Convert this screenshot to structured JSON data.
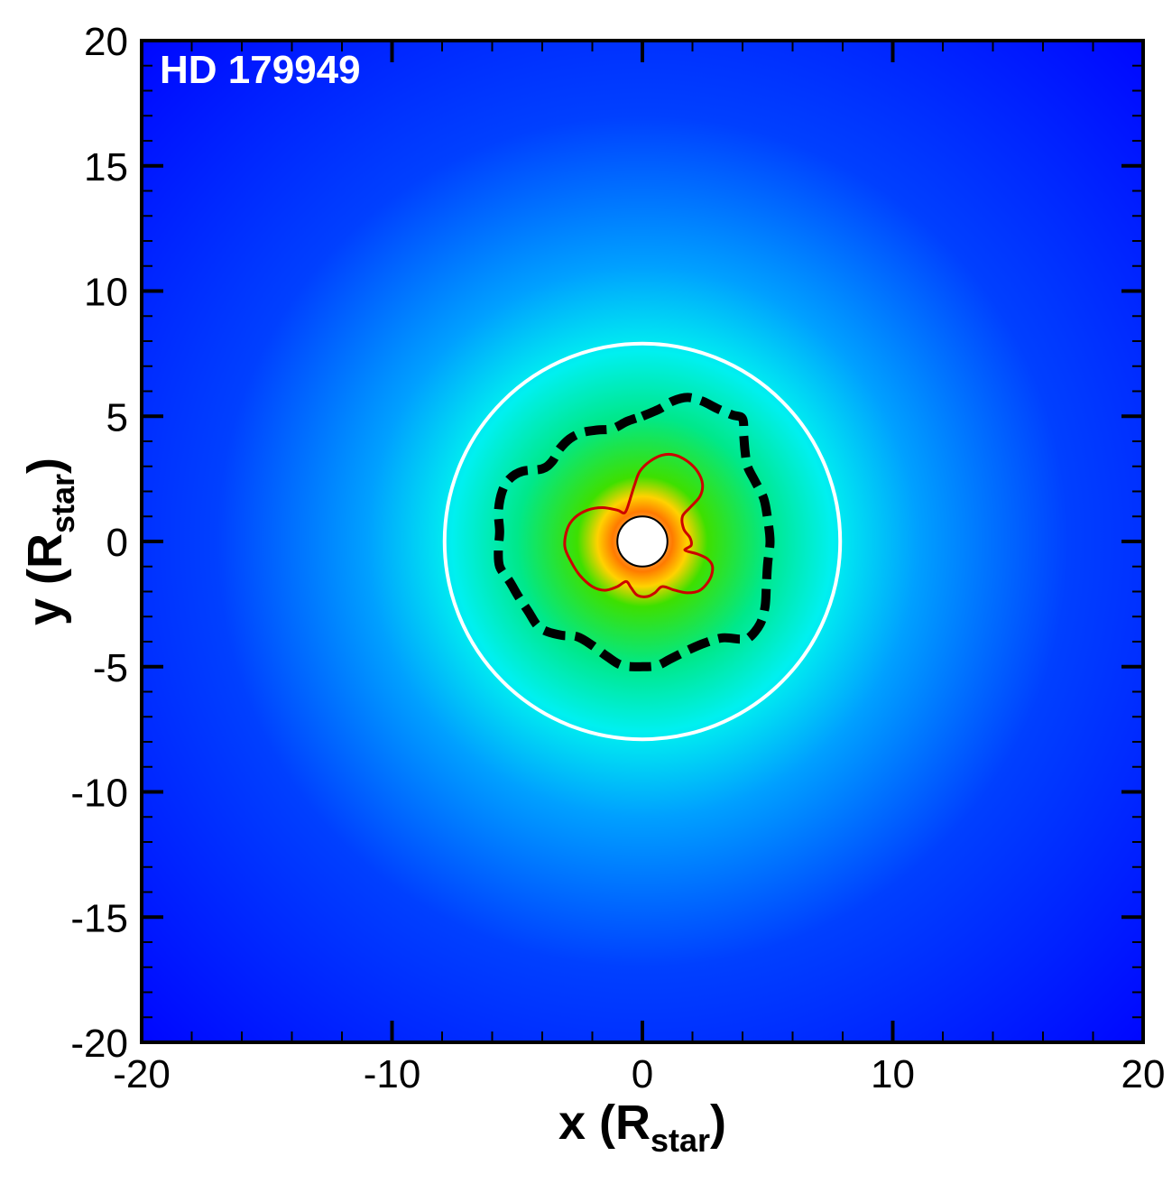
{
  "chart_data": {
    "type": "heatmap",
    "panel_label": "HD 179949",
    "xlabel": "x (R",
    "xlabel_sub": "star",
    "xlabel_close": ")",
    "ylabel": "y (R",
    "ylabel_sub": "star",
    "ylabel_close": ")",
    "xlim": [
      -20,
      20
    ],
    "ylim": [
      -20,
      20
    ],
    "x_ticks": [
      -20,
      -10,
      0,
      10,
      20
    ],
    "y_ticks": [
      -20,
      -15,
      -10,
      -5,
      0,
      5,
      10,
      15,
      20
    ],
    "x_tick_labels": [
      "-20",
      "-10",
      "0",
      "10",
      "20"
    ],
    "y_tick_labels": [
      "-20",
      "-15",
      "-10",
      "-5",
      "0",
      "5",
      "10",
      "15",
      "20"
    ],
    "grid": false,
    "colormap": {
      "stops": [
        {
          "r": 0.0,
          "color": "#fff6c8"
        },
        {
          "r": 1.2,
          "color": "#ff7a00"
        },
        {
          "r": 1.8,
          "color": "#ffd200"
        },
        {
          "r": 2.6,
          "color": "#3ee000"
        },
        {
          "r": 5.0,
          "color": "#00e88a"
        },
        {
          "r": 7.6,
          "color": "#00f0f0"
        },
        {
          "r": 11.0,
          "color": "#00a0ff"
        },
        {
          "r": 17.0,
          "color": "#0040ff"
        },
        {
          "r": 28.0,
          "color": "#0008ff"
        }
      ]
    },
    "star": {
      "center": [
        0,
        0
      ],
      "radius": 1.0,
      "fill": "#ffffff"
    },
    "white_circle": {
      "center": [
        0,
        0
      ],
      "radius": 7.9,
      "color": "#ffffff"
    },
    "dashed_contour": {
      "color": "#000000",
      "points": [
        [
          0,
          5.0
        ],
        [
          0.7,
          5.3
        ],
        [
          1.2,
          5.6
        ],
        [
          1.8,
          5.75
        ],
        [
          2.4,
          5.6
        ],
        [
          3.0,
          5.3
        ],
        [
          3.6,
          5.05
        ],
        [
          4.0,
          4.9
        ],
        [
          4.05,
          4.2
        ],
        [
          4.1,
          3.6
        ],
        [
          4.2,
          3.0
        ],
        [
          4.5,
          2.4
        ],
        [
          4.85,
          1.7
        ],
        [
          5.0,
          0.9
        ],
        [
          5.1,
          0.0
        ],
        [
          5.0,
          -0.9
        ],
        [
          4.95,
          -1.8
        ],
        [
          4.9,
          -2.6
        ],
        [
          4.7,
          -3.3
        ],
        [
          4.25,
          -3.85
        ],
        [
          3.9,
          -3.9
        ],
        [
          3.2,
          -3.85
        ],
        [
          2.5,
          -4.05
        ],
        [
          1.8,
          -4.35
        ],
        [
          1.1,
          -4.7
        ],
        [
          0.6,
          -4.95
        ],
        [
          0,
          -5.0
        ],
        [
          -0.8,
          -4.95
        ],
        [
          -1.4,
          -4.6
        ],
        [
          -2.0,
          -4.15
        ],
        [
          -2.6,
          -3.8
        ],
        [
          -3.2,
          -3.75
        ],
        [
          -3.8,
          -3.6
        ],
        [
          -4.2,
          -3.35
        ],
        [
          -4.55,
          -2.8
        ],
        [
          -4.95,
          -2.2
        ],
        [
          -5.3,
          -1.6
        ],
        [
          -5.7,
          -1.0
        ],
        [
          -5.75,
          -0.3
        ],
        [
          -5.7,
          0.4
        ],
        [
          -5.75,
          1.2
        ],
        [
          -5.6,
          2.0
        ],
        [
          -5.3,
          2.5
        ],
        [
          -4.8,
          2.8
        ],
        [
          -4.0,
          2.9
        ],
        [
          -3.6,
          3.2
        ],
        [
          -3.3,
          3.7
        ],
        [
          -2.9,
          4.1
        ],
        [
          -2.4,
          4.35
        ],
        [
          -1.8,
          4.45
        ],
        [
          -1.2,
          4.5
        ],
        [
          -0.6,
          4.8
        ],
        [
          0,
          5.0
        ]
      ]
    },
    "red_contour": {
      "color": "#cc0000",
      "points": [
        [
          -0.5,
          1.65
        ],
        [
          -0.3,
          2.3
        ],
        [
          -0.1,
          2.8
        ],
        [
          0.3,
          3.2
        ],
        [
          0.8,
          3.45
        ],
        [
          1.3,
          3.45
        ],
        [
          1.8,
          3.2
        ],
        [
          2.2,
          2.8
        ],
        [
          2.4,
          2.3
        ],
        [
          2.3,
          1.8
        ],
        [
          1.9,
          1.35
        ],
        [
          1.6,
          1.0
        ],
        [
          1.65,
          0.5
        ],
        [
          1.9,
          0.15
        ],
        [
          1.95,
          -0.15
        ],
        [
          1.7,
          -0.35
        ],
        [
          2.2,
          -0.5
        ],
        [
          2.6,
          -0.7
        ],
        [
          2.8,
          -1.0
        ],
        [
          2.7,
          -1.5
        ],
        [
          2.3,
          -1.95
        ],
        [
          1.8,
          -2.05
        ],
        [
          1.3,
          -1.95
        ],
        [
          0.8,
          -1.8
        ],
        [
          0.5,
          -2.05
        ],
        [
          0.2,
          -2.2
        ],
        [
          -0.2,
          -2.15
        ],
        [
          -0.45,
          -1.85
        ],
        [
          -0.65,
          -1.6
        ],
        [
          -1.0,
          -1.8
        ],
        [
          -1.5,
          -1.95
        ],
        [
          -2.0,
          -1.8
        ],
        [
          -2.5,
          -1.35
        ],
        [
          -2.85,
          -0.8
        ],
        [
          -3.1,
          -0.2
        ],
        [
          -3.0,
          0.5
        ],
        [
          -2.7,
          0.95
        ],
        [
          -2.2,
          1.25
        ],
        [
          -1.6,
          1.35
        ],
        [
          -1.0,
          1.25
        ],
        [
          -0.7,
          1.15
        ],
        [
          -0.5,
          1.65
        ]
      ]
    }
  }
}
